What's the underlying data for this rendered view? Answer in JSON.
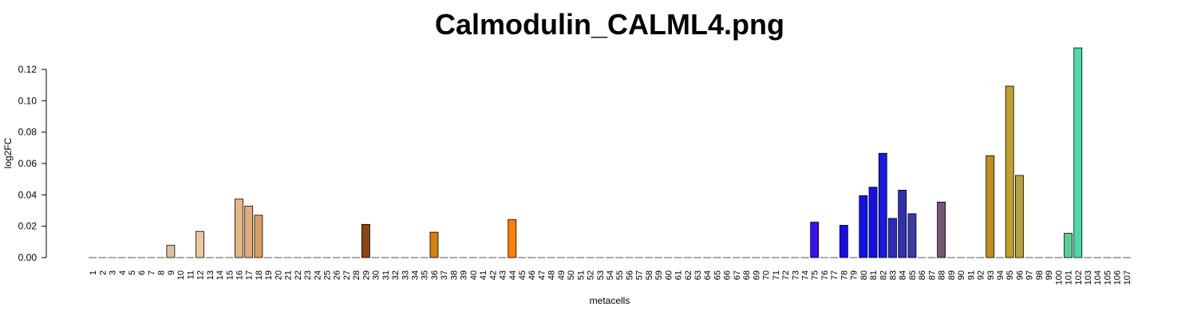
{
  "chart_data": {
    "type": "bar",
    "title": "Calmodulin_CALML4.png",
    "xlabel": "metacells",
    "ylabel": "log2FC",
    "ylim": [
      0,
      0.135
    ],
    "yticks": [
      0.0,
      0.02,
      0.04,
      0.06,
      0.08,
      0.1,
      0.12
    ],
    "ytick_labels": [
      "0.00",
      "0.02",
      "0.04",
      "0.06",
      "0.08",
      "0.10",
      "0.12"
    ],
    "categories": [
      "1",
      "2",
      "3",
      "4",
      "5",
      "6",
      "7",
      "8",
      "9",
      "10",
      "11",
      "12",
      "13",
      "14",
      "15",
      "16",
      "17",
      "18",
      "19",
      "20",
      "21",
      "22",
      "23",
      "24",
      "25",
      "26",
      "27",
      "28",
      "29",
      "30",
      "31",
      "32",
      "33",
      "34",
      "35",
      "36",
      "37",
      "38",
      "39",
      "40",
      "41",
      "42",
      "43",
      "44",
      "45",
      "46",
      "47",
      "48",
      "49",
      "50",
      "51",
      "52",
      "53",
      "54",
      "55",
      "56",
      "57",
      "58",
      "59",
      "60",
      "61",
      "62",
      "63",
      "64",
      "65",
      "66",
      "67",
      "68",
      "69",
      "70",
      "71",
      "72",
      "73",
      "74",
      "75",
      "76",
      "77",
      "78",
      "79",
      "80",
      "81",
      "82",
      "83",
      "84",
      "85",
      "86",
      "87",
      "88",
      "89",
      "90",
      "91",
      "92",
      "93",
      "94",
      "95",
      "96",
      "97",
      "98",
      "99",
      "100",
      "101",
      "102",
      "103",
      "104",
      "105",
      "106",
      "107"
    ],
    "values": [
      0,
      0,
      0,
      0,
      0,
      0,
      0,
      0,
      0.0078,
      0,
      0,
      0.0167,
      0,
      0,
      0,
      0.0373,
      0.0328,
      0.027,
      0,
      0,
      0,
      0,
      0,
      0,
      0,
      0,
      0,
      0,
      0.0212,
      0,
      0,
      0,
      0,
      0,
      0,
      0.0162,
      0,
      0,
      0,
      0,
      0,
      0,
      0,
      0.0243,
      0,
      0,
      0,
      0,
      0,
      0,
      0,
      0,
      0,
      0,
      0,
      0,
      0,
      0,
      0,
      0,
      0,
      0,
      0,
      0,
      0,
      0,
      0,
      0,
      0,
      0,
      0,
      0,
      0,
      0,
      0.0226,
      0,
      0,
      0.0206,
      0,
      0.0395,
      0.0449,
      0.0665,
      0.025,
      0.043,
      0.028,
      0,
      0,
      0.0354,
      0,
      0,
      0,
      0,
      0.065,
      0,
      0.1093,
      0.0524,
      0,
      0,
      0,
      0,
      0.0155,
      0.1337,
      0,
      0,
      0,
      0,
      0
    ],
    "colors": [
      "#888888",
      "#888888",
      "#888888",
      "#888888",
      "#888888",
      "#888888",
      "#888888",
      "#888888",
      "#DEC19B",
      "#888888",
      "#888888",
      "#EBC9A0",
      "#888888",
      "#888888",
      "#888888",
      "#E8B585",
      "#E0AE7D",
      "#D79F65",
      "#888888",
      "#888888",
      "#888888",
      "#888888",
      "#888888",
      "#888888",
      "#888888",
      "#888888",
      "#888888",
      "#888888",
      "#8B4513",
      "#888888",
      "#888888",
      "#888888",
      "#888888",
      "#888888",
      "#888888",
      "#D2820A",
      "#888888",
      "#888888",
      "#888888",
      "#888888",
      "#888888",
      "#888888",
      "#888888",
      "#FF7F00",
      "#888888",
      "#888888",
      "#888888",
      "#888888",
      "#888888",
      "#888888",
      "#888888",
      "#888888",
      "#888888",
      "#888888",
      "#888888",
      "#888888",
      "#888888",
      "#888888",
      "#888888",
      "#888888",
      "#888888",
      "#888888",
      "#888888",
      "#888888",
      "#888888",
      "#888888",
      "#888888",
      "#888888",
      "#888888",
      "#888888",
      "#888888",
      "#888888",
      "#888888",
      "#888888",
      "#3A10EE",
      "#888888",
      "#888888",
      "#1A0CEE",
      "#888888",
      "#1111EE",
      "#1111E6",
      "#1A1AE0",
      "#2B2BBF",
      "#3030B0",
      "#3A3AA8",
      "#888888",
      "#888888",
      "#735773",
      "#888888",
      "#888888",
      "#888888",
      "#888888",
      "#C08B20",
      "#888888",
      "#BFA02A",
      "#B2A23A",
      "#888888",
      "#888888",
      "#888888",
      "#888888",
      "#5CCC94",
      "#4CDBA8",
      "#888888",
      "#888888",
      "#888888",
      "#888888",
      "#888888"
    ],
    "grid": false,
    "legend": "none"
  }
}
